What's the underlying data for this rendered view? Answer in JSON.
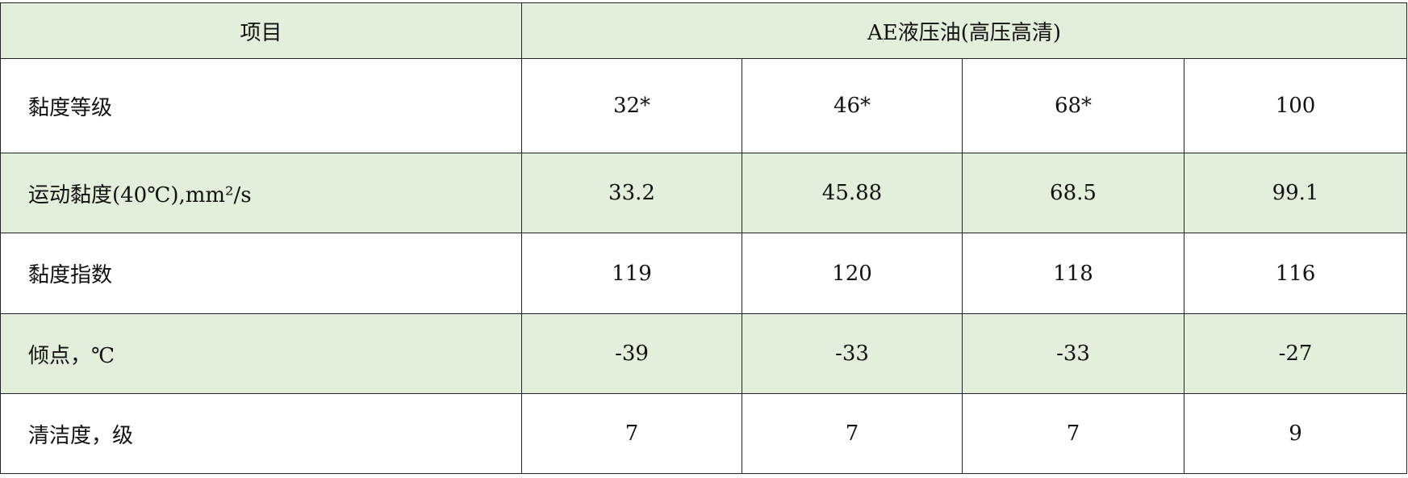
{
  "header": {
    "item": "项目",
    "product": "AE液压油(高压高清)"
  },
  "rows": [
    {
      "label": "黏度等级",
      "values": [
        "32*",
        "46*",
        "68*",
        "100"
      ]
    },
    {
      "label": "运动黏度(40℃),mm²/s",
      "values": [
        "33.2",
        "45.88",
        "68.5",
        "99.1"
      ]
    },
    {
      "label": "黏度指数",
      "values": [
        "119",
        "120",
        "118",
        "116"
      ]
    },
    {
      "label": "倾点，℃",
      "values": [
        "-39",
        "-33",
        "-33",
        "-27"
      ]
    },
    {
      "label": "清洁度，级",
      "values": [
        "7",
        "7",
        "7",
        "9"
      ]
    }
  ],
  "colors": {
    "header_bg": "#e2efda",
    "alt_row_bg": "#e2efda"
  }
}
